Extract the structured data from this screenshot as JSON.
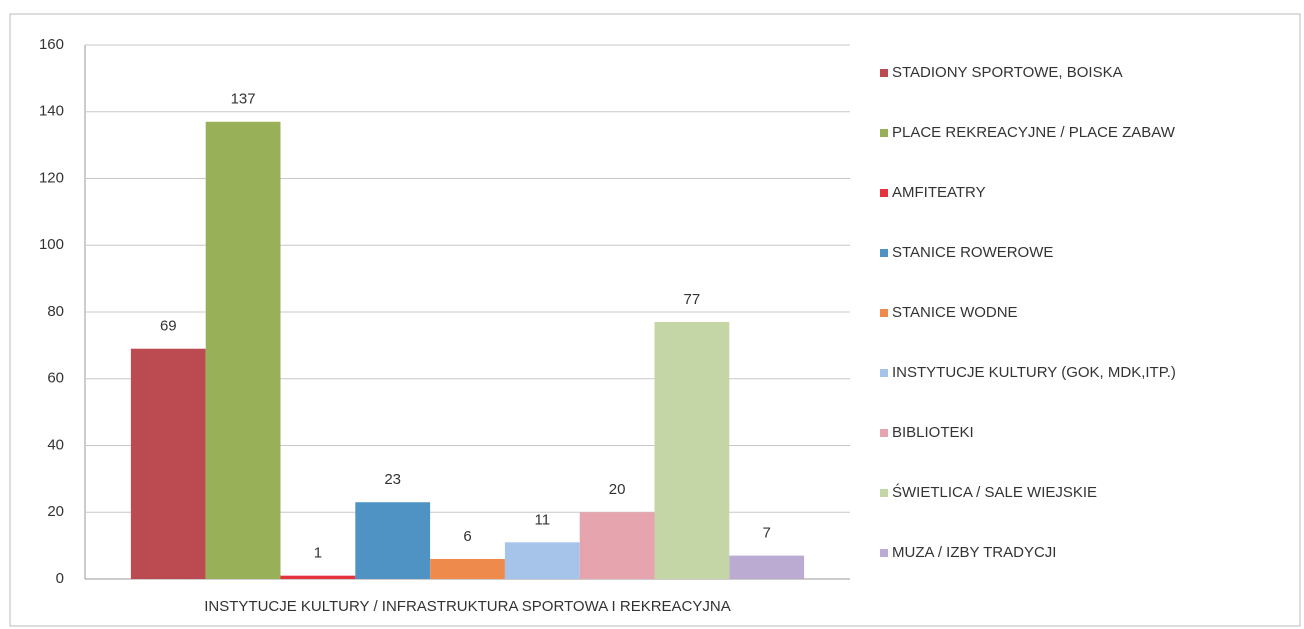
{
  "chart_data": {
    "type": "bar",
    "categories": [
      "INSTYTUCJE KULTURY / INFRASTRUKTURA SPORTOWA I REKREACYJNA"
    ],
    "series": [
      {
        "name": "STADIONY SPORTOWE, BOISKA",
        "color": "#bb4b50",
        "values": [
          69
        ]
      },
      {
        "name": "PLACE REKREACYJNE / PLACE ZABAW",
        "color": "#98b058",
        "values": [
          137
        ]
      },
      {
        "name": "AMFITEATRY",
        "color": "#e4323f",
        "values": [
          1
        ]
      },
      {
        "name": "STANICE ROWEROWE",
        "color": "#4e93c4",
        "values": [
          23
        ]
      },
      {
        "name": "STANICE WODNE",
        "color": "#ee8a4c",
        "values": [
          6
        ]
      },
      {
        "name": "INSTYTUCJE KULTURY (GOK, MDK,ITP.)",
        "color": "#a6c4ea",
        "values": [
          11
        ]
      },
      {
        "name": "BIBLIOTEKI",
        "color": "#e6a4ae",
        "values": [
          20
        ]
      },
      {
        "name": "ŚWIETLICA / SALE WIEJSKIE",
        "color": "#c4d6a6",
        "values": [
          77
        ]
      },
      {
        "name": "MUZA / IZBY TRADYCJI",
        "color": "#bbaad2",
        "values": [
          7
        ]
      }
    ],
    "ylim": [
      0,
      160
    ],
    "yticks": [
      0,
      20,
      40,
      60,
      80,
      100,
      120,
      140,
      160
    ],
    "grid": true,
    "legend": "right"
  }
}
